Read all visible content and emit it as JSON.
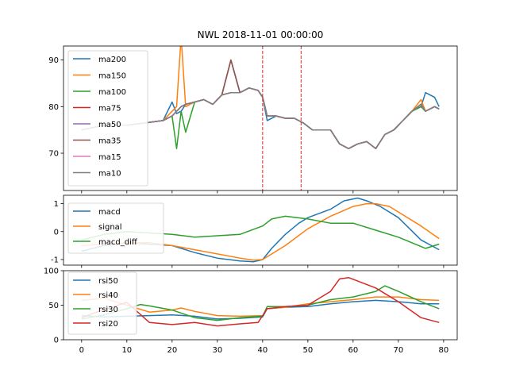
{
  "title": "NWL 2018-11-01 00:00:00",
  "chart_data": [
    {
      "type": "line",
      "panel": "price",
      "xlim": [
        -4,
        83
      ],
      "ylim": [
        62,
        93
      ],
      "yticks": [
        70,
        80,
        90
      ],
      "vlines": [
        40,
        48.5
      ],
      "vline_color": "#d62728",
      "legend": "top-left",
      "series": [
        {
          "name": "ma200",
          "color": "#1f77b4",
          "x": [
            0,
            5,
            10,
            14,
            18,
            20,
            21,
            22,
            23,
            25,
            27,
            29,
            31,
            33,
            35,
            37,
            39,
            40,
            41,
            43,
            45,
            47,
            49,
            51,
            53,
            55,
            57,
            59,
            61,
            63,
            65,
            67,
            69,
            71,
            73,
            75,
            76,
            78,
            79
          ],
          "values": [
            75,
            76,
            76,
            76.5,
            77,
            81,
            78.5,
            79,
            80.5,
            81,
            81.5,
            80.5,
            82.5,
            83,
            83,
            84,
            83.5,
            82,
            77,
            78,
            77.5,
            77.5,
            76.5,
            75,
            75,
            75,
            72,
            71,
            72,
            72.5,
            71,
            74,
            75,
            77,
            79,
            80,
            83,
            82,
            80
          ]
        },
        {
          "name": "ma150",
          "color": "#ff7f0e",
          "x": [
            0,
            5,
            10,
            14,
            18,
            20,
            21,
            22,
            23,
            25,
            27,
            29,
            31,
            33,
            35,
            37,
            39,
            40,
            41,
            43,
            45,
            47,
            49,
            51,
            53,
            55,
            57,
            59,
            61,
            63,
            65,
            67,
            69,
            71,
            73,
            75,
            76,
            78,
            79
          ],
          "values": [
            75,
            76,
            76,
            76.5,
            77,
            79,
            80,
            95,
            80,
            81,
            81.5,
            80.5,
            82.5,
            83,
            83,
            84,
            83.5,
            82,
            78,
            78,
            77.5,
            77.5,
            76.5,
            75,
            75,
            75,
            72,
            71,
            72,
            72.5,
            71,
            74,
            75,
            77,
            79,
            81.5,
            79,
            80,
            79.5
          ]
        },
        {
          "name": "ma100",
          "color": "#2ca02c",
          "x": [
            0,
            5,
            10,
            14,
            18,
            20,
            21,
            22,
            23,
            25,
            27,
            29,
            31,
            33,
            35,
            37,
            39,
            40,
            41,
            43,
            45,
            47,
            49,
            51,
            53,
            55,
            57,
            59,
            61,
            63,
            65,
            67,
            69,
            71,
            73,
            75,
            76,
            78,
            79
          ],
          "values": [
            75,
            76,
            76,
            76.5,
            77,
            78,
            71,
            79,
            74.5,
            81,
            81.5,
            80.5,
            82.5,
            83,
            83,
            84,
            83.5,
            82,
            78,
            78,
            77.5,
            77.5,
            76.5,
            75,
            75,
            75,
            72,
            71,
            72,
            72.5,
            71,
            74,
            75,
            77,
            79,
            80,
            79,
            80,
            79.5
          ]
        },
        {
          "name": "ma75",
          "color": "#d62728",
          "x": [
            0,
            5,
            10,
            14,
            18,
            20,
            21,
            22,
            23,
            25,
            27,
            29,
            31,
            33,
            35,
            37,
            39,
            40,
            41,
            43,
            45,
            47,
            49,
            51,
            53,
            55,
            57,
            59,
            61,
            63,
            65,
            67,
            69,
            71,
            73,
            75,
            76,
            78,
            79
          ],
          "values": [
            75,
            76,
            76,
            76.5,
            77,
            78,
            79,
            80,
            80.5,
            81,
            81.5,
            80.5,
            82.5,
            90,
            83,
            84,
            83.5,
            82,
            78,
            78,
            77.5,
            77.5,
            76.5,
            75,
            75,
            75,
            72,
            71,
            72,
            72.5,
            71,
            74,
            75,
            77,
            79,
            80.5,
            79,
            80,
            79.5
          ]
        },
        {
          "name": "ma50",
          "color": "#9467bd",
          "x": [
            0,
            5,
            10,
            14,
            18,
            20,
            21,
            22,
            23,
            25,
            27,
            29,
            31,
            33,
            35,
            37,
            39,
            40,
            41,
            43,
            45,
            47,
            49,
            51,
            53,
            55,
            57,
            59,
            61,
            63,
            65,
            67,
            69,
            71,
            73,
            75,
            76,
            78,
            79
          ],
          "values": [
            75,
            76,
            76,
            76.5,
            77,
            78,
            79,
            80,
            80.5,
            81,
            81.5,
            80.5,
            82.5,
            90,
            83,
            84,
            83.5,
            82,
            78,
            78,
            77.5,
            77.5,
            76.5,
            75,
            75,
            75,
            72,
            71,
            72,
            72.5,
            71,
            74,
            75,
            77,
            79,
            80.5,
            79,
            80,
            79.5
          ]
        },
        {
          "name": "ma35",
          "color": "#8c564b",
          "x": [
            0,
            5,
            10,
            14,
            18,
            20,
            21,
            22,
            23,
            25,
            27,
            29,
            31,
            33,
            35,
            37,
            39,
            40,
            41,
            43,
            45,
            47,
            49,
            51,
            53,
            55,
            57,
            59,
            61,
            63,
            65,
            67,
            69,
            71,
            73,
            75,
            76,
            78,
            79
          ],
          "values": [
            75,
            76,
            76,
            76.5,
            77,
            78,
            79,
            80,
            80.5,
            81,
            81.5,
            80.5,
            82.5,
            90,
            83,
            84,
            83.5,
            82,
            78,
            78,
            77.5,
            77.5,
            76.5,
            75,
            75,
            75,
            72,
            71,
            72,
            72.5,
            71,
            74,
            75,
            77,
            79,
            80.5,
            79,
            80,
            79.5
          ]
        },
        {
          "name": "ma15",
          "color": "#e377c2",
          "x": [
            0,
            5,
            10,
            14,
            18,
            20,
            21,
            22,
            23,
            25,
            27,
            29,
            31,
            33,
            35,
            37,
            39,
            40,
            41,
            43,
            45,
            47,
            49,
            51,
            53,
            55,
            57,
            59,
            61,
            63,
            65,
            67,
            69,
            71,
            73,
            75,
            76,
            78,
            79
          ],
          "values": [
            75,
            76,
            76,
            76.5,
            77,
            78,
            79,
            80,
            80.5,
            81,
            81.5,
            80.5,
            82.5,
            83,
            83,
            84,
            83.5,
            82,
            78,
            78,
            77.5,
            77.5,
            76.5,
            75,
            75,
            75,
            72,
            71,
            72,
            72.5,
            71,
            74,
            75,
            77,
            79,
            80.5,
            79,
            80,
            79.5
          ]
        },
        {
          "name": "ma10",
          "color": "#7f7f7f",
          "x": [
            0,
            5,
            10,
            14,
            18,
            20,
            21,
            22,
            23,
            25,
            27,
            29,
            31,
            33,
            35,
            37,
            39,
            40,
            41,
            43,
            45,
            47,
            49,
            51,
            53,
            55,
            57,
            59,
            61,
            63,
            65,
            67,
            69,
            71,
            73,
            75,
            76,
            78,
            79
          ],
          "values": [
            75,
            76,
            76,
            76.5,
            77,
            78,
            79,
            80,
            80.5,
            81,
            81.5,
            80.5,
            82.5,
            83,
            83,
            84,
            83.5,
            82,
            78,
            78,
            77.5,
            77.5,
            76.5,
            75,
            75,
            75,
            72,
            71,
            72,
            72.5,
            71,
            74,
            75,
            77,
            79,
            80.5,
            79,
            80,
            79.5
          ]
        }
      ]
    },
    {
      "type": "line",
      "panel": "macd",
      "xlim": [
        -4,
        83
      ],
      "ylim": [
        -1.2,
        1.3
      ],
      "yticks": [
        -1,
        0,
        1
      ],
      "legend": "top-left",
      "series": [
        {
          "name": "macd",
          "color": "#1f77b4",
          "x": [
            0,
            5,
            10,
            15,
            20,
            25,
            30,
            35,
            38,
            40,
            42,
            45,
            48,
            50,
            55,
            58,
            61,
            63,
            66,
            70,
            75,
            79
          ],
          "values": [
            -0.7,
            -0.5,
            -0.4,
            -0.45,
            -0.5,
            -0.75,
            -0.95,
            -1.05,
            -1.08,
            -1.0,
            -0.6,
            -0.1,
            0.3,
            0.5,
            0.8,
            1.1,
            1.2,
            1.1,
            0.9,
            0.5,
            -0.3,
            -0.65
          ]
        },
        {
          "name": "signal",
          "color": "#ff7f0e",
          "x": [
            0,
            5,
            10,
            15,
            20,
            25,
            30,
            35,
            38,
            40,
            45,
            50,
            55,
            60,
            63,
            65,
            68,
            70,
            75,
            79
          ],
          "values": [
            -0.5,
            -0.45,
            -0.4,
            -0.4,
            -0.5,
            -0.65,
            -0.8,
            -0.95,
            -1.02,
            -1.0,
            -0.5,
            0.1,
            0.55,
            0.9,
            1.0,
            1.0,
            0.9,
            0.7,
            0.2,
            -0.25
          ]
        },
        {
          "name": "macd_diff",
          "color": "#2ca02c",
          "x": [
            0,
            5,
            10,
            15,
            20,
            25,
            30,
            35,
            40,
            42,
            45,
            50,
            55,
            60,
            65,
            70,
            76,
            79
          ],
          "values": [
            -0.3,
            -0.1,
            0.0,
            -0.05,
            -0.1,
            -0.2,
            -0.15,
            -0.1,
            0.2,
            0.45,
            0.55,
            0.45,
            0.3,
            0.3,
            0.05,
            -0.2,
            -0.6,
            -0.45
          ]
        }
      ]
    },
    {
      "type": "line",
      "panel": "rsi",
      "xlim": [
        -4,
        83
      ],
      "ylim": [
        0,
        100
      ],
      "yticks": [
        0,
        50,
        100
      ],
      "legend": "top-left",
      "series": [
        {
          "name": "rsi50",
          "color": "#1f77b4",
          "x": [
            0,
            5,
            10,
            15,
            20,
            25,
            30,
            35,
            40,
            41,
            45,
            50,
            55,
            60,
            65,
            70,
            75,
            79
          ],
          "values": [
            35,
            33,
            34,
            35,
            36,
            34,
            30,
            31,
            33,
            45,
            47,
            48,
            52,
            55,
            57,
            55,
            52,
            52
          ]
        },
        {
          "name": "rsi40",
          "color": "#ff7f0e",
          "x": [
            0,
            5,
            10,
            15,
            20,
            22,
            25,
            30,
            35,
            40,
            41,
            45,
            50,
            55,
            60,
            65,
            70,
            75,
            79
          ],
          "values": [
            57,
            60,
            50,
            40,
            43,
            46,
            41,
            35,
            34,
            35,
            45,
            47,
            52,
            55,
            58,
            62,
            62,
            58,
            57
          ]
        },
        {
          "name": "rsi30",
          "color": "#2ca02c",
          "x": [
            0,
            5,
            10,
            13,
            15,
            20,
            25,
            30,
            35,
            40,
            41,
            45,
            50,
            55,
            60,
            65,
            67,
            70,
            75,
            79
          ],
          "values": [
            30,
            36,
            45,
            51,
            49,
            43,
            32,
            28,
            32,
            34,
            48,
            48,
            50,
            58,
            62,
            70,
            78,
            70,
            55,
            45
          ]
        },
        {
          "name": "rsi20",
          "color": "#d62728",
          "x": [
            0,
            5,
            10,
            15,
            20,
            25,
            30,
            35,
            39,
            41,
            45,
            50,
            55,
            57,
            59,
            61,
            65,
            70,
            75,
            79
          ],
          "values": [
            32,
            44,
            54,
            25,
            22,
            25,
            20,
            23,
            25,
            45,
            48,
            50,
            70,
            88,
            90,
            85,
            75,
            55,
            32,
            25
          ]
        }
      ]
    }
  ],
  "xticks": [
    0,
    10,
    20,
    30,
    40,
    50,
    60,
    70,
    80
  ]
}
